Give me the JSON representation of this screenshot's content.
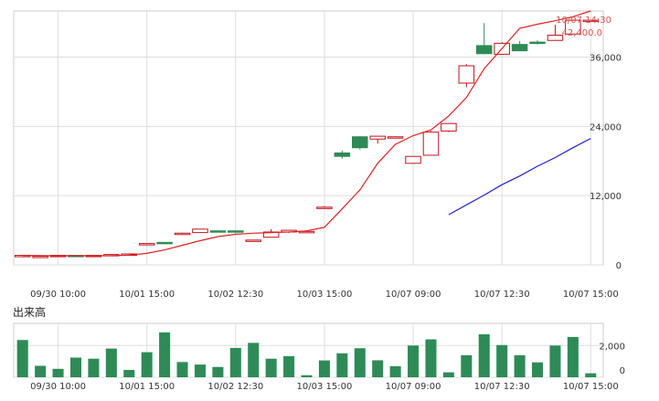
{
  "chart_data": [
    {
      "type": "candlestick",
      "title": "",
      "ylim": [
        0,
        44000
      ],
      "y_ticks": [
        0,
        12000,
        24000,
        36000
      ],
      "y_tick_labels": [
        "0",
        "12,000",
        "24,000",
        "36,000"
      ],
      "x_tick_labels": [
        "09/30 10:00",
        "10/01 15:00",
        "10/02 12:30",
        "10/03 15:00",
        "10/07 09:00",
        "10/07 12:30",
        "10/07 15:00"
      ],
      "x_tick_index": [
        2,
        7,
        12,
        17,
        22,
        27,
        32
      ],
      "grid": true,
      "annotation": {
        "time": "10/07 14:30",
        "price": "42,400.0"
      },
      "colors": {
        "up": "#c0141e",
        "down": "#2e8b57",
        "ma_short": "#e02020",
        "ma_long": "#2020c8",
        "grid": "#dddddd"
      },
      "candles": [
        {
          "o": 1650,
          "h": 1650,
          "l": 1650,
          "c": 1650
        },
        {
          "o": 1500,
          "h": 1500,
          "l": 1500,
          "c": 1500
        },
        {
          "o": 1500,
          "h": 1500,
          "l": 1500,
          "c": 1650
        },
        {
          "o": 1650,
          "h": 1650,
          "l": 1650,
          "c": 1500
        },
        {
          "o": 1500,
          "h": 1500,
          "l": 1500,
          "c": 1650
        },
        {
          "o": 1700,
          "h": 1800,
          "l": 1700,
          "c": 1800
        },
        {
          "o": 1900,
          "h": 2000,
          "l": 1900,
          "c": 1900
        },
        {
          "o": 3700,
          "h": 3800,
          "l": 3700,
          "c": 3700
        },
        {
          "o": 3900,
          "h": 3900,
          "l": 3800,
          "c": 3800
        },
        {
          "o": 5500,
          "h": 5600,
          "l": 5500,
          "c": 5500
        },
        {
          "o": 5600,
          "h": 6200,
          "l": 5600,
          "c": 6200
        },
        {
          "o": 5900,
          "h": 6000,
          "l": 5600,
          "c": 5700
        },
        {
          "o": 5900,
          "h": 6000,
          "l": 5500,
          "c": 5700
        },
        {
          "o": 4200,
          "h": 4300,
          "l": 4000,
          "c": 4300
        },
        {
          "o": 4800,
          "h": 6200,
          "l": 4800,
          "c": 5700
        },
        {
          "o": 5700,
          "h": 6000,
          "l": 5500,
          "c": 6000
        },
        {
          "o": 5800,
          "h": 5800,
          "l": 5800,
          "c": 5800
        },
        {
          "o": 10000,
          "h": 10200,
          "l": 10000,
          "c": 10000
        },
        {
          "o": 19400,
          "h": 19800,
          "l": 18400,
          "c": 18800
        },
        {
          "o": 22200,
          "h": 22300,
          "l": 20000,
          "c": 20300
        },
        {
          "o": 21800,
          "h": 22300,
          "l": 21000,
          "c": 22300
        },
        {
          "o": 22200,
          "h": 22200,
          "l": 22100,
          "c": 22200
        },
        {
          "o": 17600,
          "h": 18800,
          "l": 17600,
          "c": 18800
        },
        {
          "o": 19000,
          "h": 23200,
          "l": 19000,
          "c": 23000
        },
        {
          "o": 23200,
          "h": 24500,
          "l": 23000,
          "c": 24500
        },
        {
          "o": 31500,
          "h": 34800,
          "l": 30800,
          "c": 34500
        },
        {
          "o": 38000,
          "h": 41900,
          "l": 36600,
          "c": 36600
        },
        {
          "o": 36500,
          "h": 38600,
          "l": 36500,
          "c": 38400
        },
        {
          "o": 38200,
          "h": 38800,
          "l": 37100,
          "c": 37100
        },
        {
          "o": 38600,
          "h": 38900,
          "l": 38200,
          "c": 38500
        },
        {
          "o": 38900,
          "h": 41600,
          "l": 38900,
          "c": 39800
        },
        {
          "o": 40000,
          "h": 42500,
          "l": 40000,
          "c": 42400
        },
        {
          "o": 42400,
          "h": 42500,
          "l": 42400,
          "c": 42400
        }
      ],
      "ma_short": [
        1650,
        1600,
        1580,
        1580,
        1580,
        1600,
        1700,
        2000,
        2600,
        3400,
        4200,
        4900,
        5300,
        5500,
        5600,
        5700,
        5900,
        6500,
        9700,
        13000,
        17600,
        20900,
        22400,
        23400,
        25800,
        29000,
        34000,
        37500,
        41000,
        41700,
        42300,
        43000,
        44000
      ],
      "ma_long": [
        null,
        null,
        null,
        null,
        null,
        null,
        null,
        null,
        null,
        null,
        null,
        null,
        null,
        null,
        null,
        null,
        null,
        null,
        null,
        null,
        null,
        null,
        null,
        null,
        8700,
        10400,
        12100,
        13900,
        15400,
        17100,
        18600,
        20300,
        21900
      ]
    },
    {
      "type": "bar",
      "title": "出来高",
      "ylim": [
        0,
        3400
      ],
      "y_ticks": [
        0,
        2000
      ],
      "y_tick_labels": [
        "0",
        "2,000"
      ],
      "x_tick_labels": [
        "09/30 10:00",
        "10/01 15:00",
        "10/02 12:30",
        "10/03 15:00",
        "10/07 09:00",
        "10/07 12:30",
        "10/07 15:00"
      ],
      "x_tick_index": [
        2,
        7,
        12,
        17,
        22,
        27,
        32
      ],
      "grid": true,
      "colors": {
        "bar": "#2e8b57",
        "grid": "#dddddd"
      },
      "values": [
        2350,
        720,
        530,
        1240,
        1170,
        1810,
        460,
        1580,
        2830,
        960,
        800,
        650,
        1850,
        2170,
        1170,
        1330,
        130,
        1060,
        1510,
        1830,
        1070,
        700,
        2000,
        2390,
        310,
        1390,
        2710,
        2030,
        1390,
        940,
        2000,
        2540,
        250
      ]
    }
  ]
}
